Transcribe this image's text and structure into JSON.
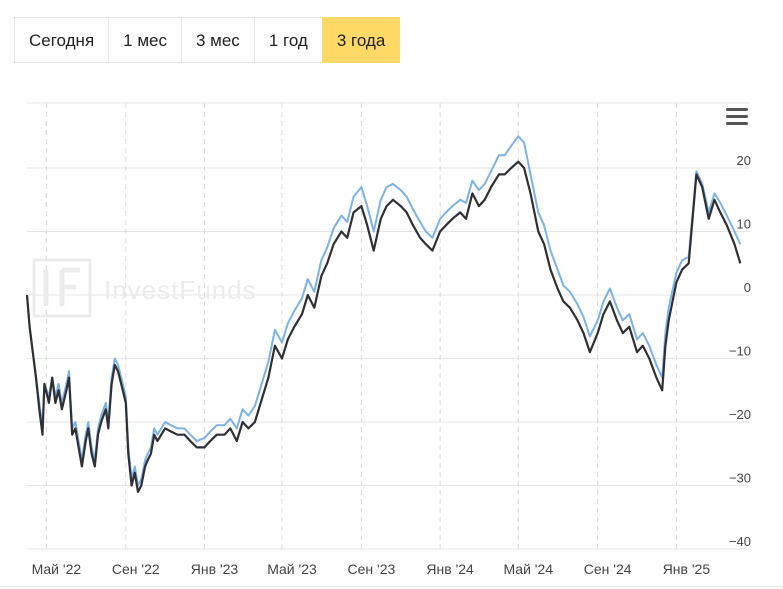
{
  "tabs": [
    {
      "label": "Сегодня",
      "active": false
    },
    {
      "label": "1 мес",
      "active": false
    },
    {
      "label": "3 мес",
      "active": false
    },
    {
      "label": "1 год",
      "active": false
    },
    {
      "label": "3 года",
      "active": true
    }
  ],
  "watermark": "InvestFunds",
  "colors": {
    "series_dark": "#2f2f36",
    "series_light": "#7eb2e4",
    "grid": "#e6e6e6",
    "active_tab": "#ffd966"
  },
  "chart_data": {
    "type": "line",
    "ylim": [
      -40,
      20
    ],
    "yticks": [
      {
        "value": 20,
        "label": "20"
      },
      {
        "value": 10,
        "label": "10"
      },
      {
        "value": 0,
        "label": "0"
      },
      {
        "value": -10,
        "label": "−10"
      },
      {
        "value": -20,
        "label": "−20"
      },
      {
        "value": -30,
        "label": "−30"
      },
      {
        "value": -40,
        "label": "−40"
      }
    ],
    "xlim": [
      "2022-04-01",
      "2025-04-25"
    ],
    "xticks": [
      {
        "date": "2022-05-01",
        "label": "Май '22"
      },
      {
        "date": "2022-09-01",
        "label": "Сен '22"
      },
      {
        "date": "2023-01-01",
        "label": "Янв '23"
      },
      {
        "date": "2023-05-01",
        "label": "Май '23"
      },
      {
        "date": "2023-09-01",
        "label": "Сен '23"
      },
      {
        "date": "2024-01-01",
        "label": "Янв '24"
      },
      {
        "date": "2024-05-01",
        "label": "Май '24"
      },
      {
        "date": "2024-09-01",
        "label": "Сен '24"
      },
      {
        "date": "2025-01-01",
        "label": "Янв '25"
      }
    ],
    "grid": true,
    "legend": "none",
    "series": [
      {
        "color": "#2f2f36",
        "points": [
          [
            "2022-04-01",
            0
          ],
          [
            "2022-04-05",
            -5
          ],
          [
            "2022-04-10",
            -9
          ],
          [
            "2022-04-15",
            -13
          ],
          [
            "2022-04-20",
            -18
          ],
          [
            "2022-04-25",
            -22
          ],
          [
            "2022-04-28",
            -14
          ],
          [
            "2022-05-05",
            -17
          ],
          [
            "2022-05-10",
            -13
          ],
          [
            "2022-05-15",
            -17
          ],
          [
            "2022-05-20",
            -15
          ],
          [
            "2022-05-25",
            -18
          ],
          [
            "2022-06-01",
            -15
          ],
          [
            "2022-06-05",
            -13
          ],
          [
            "2022-06-10",
            -22
          ],
          [
            "2022-06-15",
            -21
          ],
          [
            "2022-06-20",
            -24
          ],
          [
            "2022-06-25",
            -27
          ],
          [
            "2022-07-01",
            -23
          ],
          [
            "2022-07-05",
            -21
          ],
          [
            "2022-07-10",
            -25
          ],
          [
            "2022-07-15",
            -27
          ],
          [
            "2022-07-20",
            -22
          ],
          [
            "2022-07-25",
            -20
          ],
          [
            "2022-08-01",
            -18
          ],
          [
            "2022-08-05",
            -21
          ],
          [
            "2022-08-10",
            -14
          ],
          [
            "2022-08-15",
            -11
          ],
          [
            "2022-08-20",
            -12
          ],
          [
            "2022-08-25",
            -14
          ],
          [
            "2022-09-01",
            -17
          ],
          [
            "2022-09-05",
            -25
          ],
          [
            "2022-09-10",
            -30
          ],
          [
            "2022-09-15",
            -28
          ],
          [
            "2022-09-20",
            -31
          ],
          [
            "2022-09-25",
            -30
          ],
          [
            "2022-10-01",
            -27
          ],
          [
            "2022-10-05",
            -26
          ],
          [
            "2022-10-10",
            -25
          ],
          [
            "2022-10-15",
            -22
          ],
          [
            "2022-10-20",
            -23
          ],
          [
            "2022-11-01",
            -21
          ],
          [
            "2022-11-10",
            -21.5
          ],
          [
            "2022-11-20",
            -22
          ],
          [
            "2022-12-01",
            -22
          ],
          [
            "2022-12-10",
            -23
          ],
          [
            "2022-12-20",
            -24
          ],
          [
            "2023-01-01",
            -24
          ],
          [
            "2023-01-10",
            -23
          ],
          [
            "2023-01-20",
            -22
          ],
          [
            "2023-02-01",
            -22
          ],
          [
            "2023-02-10",
            -21
          ],
          [
            "2023-02-20",
            -23
          ],
          [
            "2023-03-01",
            -20
          ],
          [
            "2023-03-10",
            -21
          ],
          [
            "2023-03-20",
            -20
          ],
          [
            "2023-04-01",
            -16
          ],
          [
            "2023-04-10",
            -13
          ],
          [
            "2023-04-20",
            -8
          ],
          [
            "2023-05-01",
            -10
          ],
          [
            "2023-05-10",
            -7
          ],
          [
            "2023-05-20",
            -5
          ],
          [
            "2023-06-01",
            -3
          ],
          [
            "2023-06-10",
            0
          ],
          [
            "2023-06-20",
            -2
          ],
          [
            "2023-07-01",
            3
          ],
          [
            "2023-07-10",
            5
          ],
          [
            "2023-07-20",
            8
          ],
          [
            "2023-08-01",
            10
          ],
          [
            "2023-08-10",
            9
          ],
          [
            "2023-08-20",
            13
          ],
          [
            "2023-09-01",
            14
          ],
          [
            "2023-09-10",
            11
          ],
          [
            "2023-09-20",
            7
          ],
          [
            "2023-10-01",
            12
          ],
          [
            "2023-10-10",
            14
          ],
          [
            "2023-10-20",
            15
          ],
          [
            "2023-11-01",
            14
          ],
          [
            "2023-11-10",
            13
          ],
          [
            "2023-11-20",
            11
          ],
          [
            "2023-12-01",
            9
          ],
          [
            "2023-12-10",
            8
          ],
          [
            "2023-12-20",
            7
          ],
          [
            "2024-01-01",
            10
          ],
          [
            "2024-01-10",
            11
          ],
          [
            "2024-01-20",
            12
          ],
          [
            "2024-02-01",
            13
          ],
          [
            "2024-02-10",
            12
          ],
          [
            "2024-02-20",
            16
          ],
          [
            "2024-03-01",
            14
          ],
          [
            "2024-03-10",
            15
          ],
          [
            "2024-03-20",
            17
          ],
          [
            "2024-04-01",
            19
          ],
          [
            "2024-04-10",
            19
          ],
          [
            "2024-04-20",
            20
          ],
          [
            "2024-05-01",
            21
          ],
          [
            "2024-05-10",
            20
          ],
          [
            "2024-05-20",
            16
          ],
          [
            "2024-06-01",
            10
          ],
          [
            "2024-06-10",
            8
          ],
          [
            "2024-06-20",
            4
          ],
          [
            "2024-07-01",
            1
          ],
          [
            "2024-07-10",
            -1
          ],
          [
            "2024-07-20",
            -2
          ],
          [
            "2024-08-01",
            -4
          ],
          [
            "2024-08-10",
            -6
          ],
          [
            "2024-08-20",
            -9
          ],
          [
            "2024-09-01",
            -6
          ],
          [
            "2024-09-10",
            -3
          ],
          [
            "2024-09-20",
            -1
          ],
          [
            "2024-10-01",
            -4
          ],
          [
            "2024-10-10",
            -6
          ],
          [
            "2024-10-20",
            -5
          ],
          [
            "2024-11-01",
            -9
          ],
          [
            "2024-11-10",
            -8
          ],
          [
            "2024-11-20",
            -10
          ],
          [
            "2024-12-01",
            -13
          ],
          [
            "2024-12-10",
            -15
          ],
          [
            "2024-12-15",
            -8
          ],
          [
            "2024-12-20",
            -4
          ],
          [
            "2025-01-01",
            2
          ],
          [
            "2025-01-10",
            4
          ],
          [
            "2025-01-20",
            5
          ],
          [
            "2025-02-01",
            19
          ],
          [
            "2025-02-10",
            17
          ],
          [
            "2025-02-20",
            12
          ],
          [
            "2025-03-01",
            15
          ],
          [
            "2025-03-10",
            13
          ],
          [
            "2025-03-20",
            11
          ],
          [
            "2025-04-01",
            8
          ],
          [
            "2025-04-10",
            5
          ]
        ]
      },
      {
        "color": "#7eb2e4",
        "points": [
          [
            "2022-04-01",
            0
          ],
          [
            "2022-04-05",
            -5
          ],
          [
            "2022-04-10",
            -9
          ],
          [
            "2022-04-15",
            -13
          ],
          [
            "2022-04-20",
            -17
          ],
          [
            "2022-04-25",
            -21
          ],
          [
            "2022-04-28",
            -14
          ],
          [
            "2022-05-05",
            -16
          ],
          [
            "2022-05-10",
            -13
          ],
          [
            "2022-05-15",
            -16
          ],
          [
            "2022-05-20",
            -14
          ],
          [
            "2022-05-25",
            -17
          ],
          [
            "2022-06-01",
            -14
          ],
          [
            "2022-06-05",
            -12
          ],
          [
            "2022-06-10",
            -21
          ],
          [
            "2022-06-15",
            -20
          ],
          [
            "2022-06-20",
            -23
          ],
          [
            "2022-06-25",
            -26
          ],
          [
            "2022-07-01",
            -22
          ],
          [
            "2022-07-05",
            -20
          ],
          [
            "2022-07-10",
            -24
          ],
          [
            "2022-07-15",
            -26
          ],
          [
            "2022-07-20",
            -21
          ],
          [
            "2022-07-25",
            -19
          ],
          [
            "2022-08-01",
            -17
          ],
          [
            "2022-08-05",
            -20
          ],
          [
            "2022-08-10",
            -13
          ],
          [
            "2022-08-15",
            -10
          ],
          [
            "2022-08-20",
            -11
          ],
          [
            "2022-08-25",
            -13
          ],
          [
            "2022-09-01",
            -16
          ],
          [
            "2022-09-05",
            -24
          ],
          [
            "2022-09-10",
            -29
          ],
          [
            "2022-09-15",
            -27
          ],
          [
            "2022-09-20",
            -30
          ],
          [
            "2022-09-25",
            -29
          ],
          [
            "2022-10-01",
            -26
          ],
          [
            "2022-10-05",
            -25
          ],
          [
            "2022-10-10",
            -24
          ],
          [
            "2022-10-15",
            -21
          ],
          [
            "2022-10-20",
            -22
          ],
          [
            "2022-11-01",
            -20
          ],
          [
            "2022-11-10",
            -20.5
          ],
          [
            "2022-11-20",
            -21
          ],
          [
            "2022-12-01",
            -21
          ],
          [
            "2022-12-10",
            -22
          ],
          [
            "2022-12-20",
            -23
          ],
          [
            "2023-01-01",
            -22.5
          ],
          [
            "2023-01-10",
            -21.5
          ],
          [
            "2023-01-20",
            -20.5
          ],
          [
            "2023-02-01",
            -20.5
          ],
          [
            "2023-02-10",
            -19.5
          ],
          [
            "2023-02-20",
            -21
          ],
          [
            "2023-03-01",
            -18
          ],
          [
            "2023-03-10",
            -19
          ],
          [
            "2023-03-20",
            -17.5
          ],
          [
            "2023-04-01",
            -13.5
          ],
          [
            "2023-04-10",
            -10.5
          ],
          [
            "2023-04-20",
            -5.5
          ],
          [
            "2023-05-01",
            -7.5
          ],
          [
            "2023-05-10",
            -4.5
          ],
          [
            "2023-05-20",
            -2.5
          ],
          [
            "2023-06-01",
            -0.5
          ],
          [
            "2023-06-10",
            2.5
          ],
          [
            "2023-06-20",
            0.5
          ],
          [
            "2023-07-01",
            5.5
          ],
          [
            "2023-07-10",
            7.5
          ],
          [
            "2023-07-20",
            10.5
          ],
          [
            "2023-08-01",
            12.5
          ],
          [
            "2023-08-10",
            11.5
          ],
          [
            "2023-08-20",
            15.5
          ],
          [
            "2023-09-01",
            17
          ],
          [
            "2023-09-10",
            14
          ],
          [
            "2023-09-20",
            10
          ],
          [
            "2023-10-01",
            15
          ],
          [
            "2023-10-10",
            17
          ],
          [
            "2023-10-20",
            17.5
          ],
          [
            "2023-11-01",
            16.5
          ],
          [
            "2023-11-10",
            15.5
          ],
          [
            "2023-11-20",
            13.5
          ],
          [
            "2023-12-01",
            11.5
          ],
          [
            "2023-12-10",
            10
          ],
          [
            "2023-12-20",
            9
          ],
          [
            "2024-01-01",
            12
          ],
          [
            "2024-01-10",
            13
          ],
          [
            "2024-01-20",
            14
          ],
          [
            "2024-02-01",
            15
          ],
          [
            "2024-02-10",
            14.5
          ],
          [
            "2024-02-20",
            18
          ],
          [
            "2024-03-01",
            16.5
          ],
          [
            "2024-03-10",
            17.5
          ],
          [
            "2024-03-20",
            19.5
          ],
          [
            "2024-04-01",
            22
          ],
          [
            "2024-04-10",
            22
          ],
          [
            "2024-04-20",
            23.5
          ],
          [
            "2024-05-01",
            25
          ],
          [
            "2024-05-10",
            24
          ],
          [
            "2024-05-20",
            19
          ],
          [
            "2024-06-01",
            13
          ],
          [
            "2024-06-10",
            11
          ],
          [
            "2024-06-20",
            7
          ],
          [
            "2024-07-01",
            4
          ],
          [
            "2024-07-10",
            1.5
          ],
          [
            "2024-07-20",
            0.5
          ],
          [
            "2024-08-01",
            -1.5
          ],
          [
            "2024-08-10",
            -3.5
          ],
          [
            "2024-08-20",
            -6.5
          ],
          [
            "2024-09-01",
            -4
          ],
          [
            "2024-09-10",
            -1
          ],
          [
            "2024-09-20",
            1
          ],
          [
            "2024-10-01",
            -2
          ],
          [
            "2024-10-10",
            -4
          ],
          [
            "2024-10-20",
            -3
          ],
          [
            "2024-11-01",
            -7
          ],
          [
            "2024-11-10",
            -6
          ],
          [
            "2024-11-20",
            -8
          ],
          [
            "2024-12-01",
            -11
          ],
          [
            "2024-12-10",
            -13
          ],
          [
            "2024-12-15",
            -6
          ],
          [
            "2024-12-20",
            -2
          ],
          [
            "2025-01-01",
            3.5
          ],
          [
            "2025-01-10",
            5.5
          ],
          [
            "2025-01-20",
            6
          ],
          [
            "2025-02-01",
            19.5
          ],
          [
            "2025-02-10",
            17.5
          ],
          [
            "2025-02-20",
            13
          ],
          [
            "2025-03-01",
            16
          ],
          [
            "2025-03-10",
            14.5
          ],
          [
            "2025-03-20",
            12.5
          ],
          [
            "2025-04-01",
            10
          ],
          [
            "2025-04-10",
            8
          ]
        ]
      }
    ]
  }
}
